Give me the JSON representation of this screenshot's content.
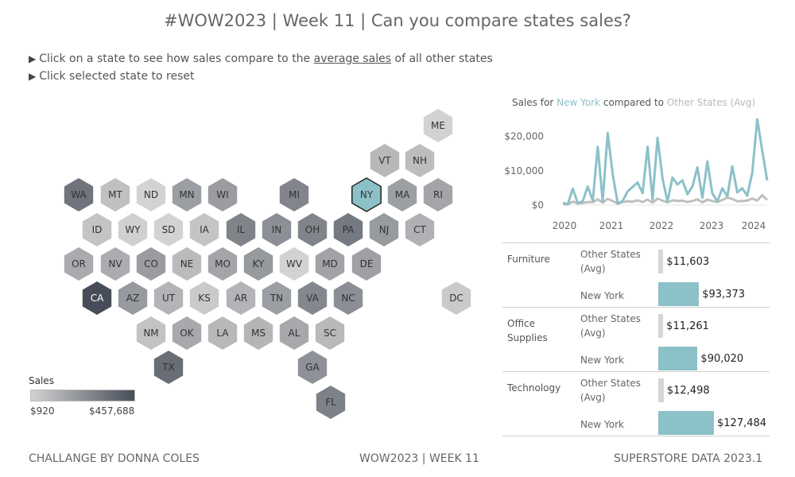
{
  "title": "#WOW2023 | Week 11 | Can you compare states sales?",
  "instructions": {
    "line1_pre": "Click on a state to see how sales compare to the",
    "line1_link": "average sales",
    "line1_post": "of all other states",
    "line2": "Click selected state to reset",
    "arrow": "▶"
  },
  "colors": {
    "selected": "#8cc1c8",
    "low": "#d3d3d3",
    "high": "#474d58",
    "other": "#bfbfbf",
    "title_state": "#8cc1c8",
    "title_other": "#b9b9b9"
  },
  "legend": {
    "title": "Sales",
    "min": "$920",
    "max": "$457,688",
    "min_value": 920,
    "max_value": 457688
  },
  "chart_data": [
    {
      "type": "heatmap",
      "title": "",
      "selected": "NY",
      "states": [
        {
          "code": "ME",
          "value": 1300
        },
        {
          "code": "VT",
          "value": 9000
        },
        {
          "code": "NH",
          "value": 7000
        },
        {
          "code": "WA",
          "value": 138000
        },
        {
          "code": "MT",
          "value": 5600
        },
        {
          "code": "ND",
          "value": 920
        },
        {
          "code": "MN",
          "value": 30000
        },
        {
          "code": "WI",
          "value": 32000
        },
        {
          "code": "MI",
          "value": 76000
        },
        {
          "code": "NY",
          "value": 310876
        },
        {
          "code": "MA",
          "value": 29000
        },
        {
          "code": "RI",
          "value": 22000
        },
        {
          "code": "ID",
          "value": 4400
        },
        {
          "code": "WY",
          "value": 1600
        },
        {
          "code": "SD",
          "value": 1300
        },
        {
          "code": "IA",
          "value": 4600
        },
        {
          "code": "IL",
          "value": 80000
        },
        {
          "code": "IN",
          "value": 53000
        },
        {
          "code": "OH",
          "value": 78000
        },
        {
          "code": "PA",
          "value": 116000
        },
        {
          "code": "NJ",
          "value": 35000
        },
        {
          "code": "CT",
          "value": 13000
        },
        {
          "code": "OR",
          "value": 17000
        },
        {
          "code": "NV",
          "value": 16000
        },
        {
          "code": "CO",
          "value": 32000
        },
        {
          "code": "NE",
          "value": 7500
        },
        {
          "code": "MO",
          "value": 22000
        },
        {
          "code": "KY",
          "value": 37000
        },
        {
          "code": "WV",
          "value": 1200
        },
        {
          "code": "MD",
          "value": 24000
        },
        {
          "code": "DE",
          "value": 27000
        },
        {
          "code": "CA",
          "value": 457688
        },
        {
          "code": "AZ",
          "value": 35000
        },
        {
          "code": "UT",
          "value": 11000
        },
        {
          "code": "KS",
          "value": 2900
        },
        {
          "code": "AR",
          "value": 11000
        },
        {
          "code": "TN",
          "value": 30000
        },
        {
          "code": "VA",
          "value": 70000
        },
        {
          "code": "NC",
          "value": 55000
        },
        {
          "code": "DC",
          "value": 2900
        },
        {
          "code": "NM",
          "value": 4800
        },
        {
          "code": "OK",
          "value": 19000
        },
        {
          "code": "LA",
          "value": 9000
        },
        {
          "code": "MS",
          "value": 10700
        },
        {
          "code": "AL",
          "value": 19500
        },
        {
          "code": "SC",
          "value": 8500
        },
        {
          "code": "TX",
          "value": 170000
        },
        {
          "code": "GA",
          "value": 49000
        },
        {
          "code": "FL",
          "value": 89000
        }
      ]
    },
    {
      "type": "line",
      "title_prefix": "Sales for",
      "title_state": "New York",
      "title_mid": "compared to",
      "title_other": "Other States (Avg)",
      "x_ticks": [
        "2020",
        "2021",
        "2022",
        "2023",
        "2024"
      ],
      "y_ticks": [
        "$0",
        "$10,000",
        "$20,000"
      ],
      "ylim": [
        0,
        25000
      ],
      "x_start": 2020,
      "series": [
        {
          "name": "New York",
          "values": [
            600,
            300,
            4800,
            500,
            1200,
            5400,
            1300,
            17000,
            1100,
            21000,
            9000,
            500,
            1200,
            4000,
            5300,
            6600,
            3500,
            17000,
            1600,
            19600,
            7700,
            1000,
            8000,
            6000,
            7200,
            3200,
            5400,
            11000,
            2100,
            12700,
            3400,
            1100,
            4900,
            2500,
            11300,
            3700,
            4900,
            2700,
            9400,
            25000,
            16000,
            7200
          ]
        },
        {
          "name": "Other States (Avg)",
          "values": [
            300,
            200,
            1000,
            500,
            600,
            900,
            800,
            1700,
            700,
            1800,
            1200,
            400,
            900,
            1100,
            1000,
            1400,
            900,
            1600,
            700,
            1900,
            1300,
            800,
            1400,
            1200,
            1300,
            900,
            1200,
            1700,
            800,
            1600,
            1200,
            900,
            1500,
            2200,
            1800,
            1100,
            1200,
            1300,
            1900,
            1300,
            2900,
            1500
          ]
        }
      ]
    },
    {
      "type": "bar",
      "max": 127484,
      "categories": [
        {
          "name": "Furniture",
          "rows": [
            {
              "label": "Other States (Avg)",
              "value": 11603,
              "display": "$11,603",
              "kind": "other"
            },
            {
              "label": "New York",
              "value": 93373,
              "display": "$93,373",
              "kind": "state"
            }
          ]
        },
        {
          "name": "Office Supplies",
          "rows": [
            {
              "label": "Other States (Avg)",
              "value": 11261,
              "display": "$11,261",
              "kind": "other"
            },
            {
              "label": "New York",
              "value": 90020,
              "display": "$90,020",
              "kind": "state"
            }
          ]
        },
        {
          "name": "Technology",
          "rows": [
            {
              "label": "Other States (Avg)",
              "value": 12498,
              "display": "$12,498",
              "kind": "other"
            },
            {
              "label": "New York",
              "value": 127484,
              "display": "$127,484",
              "kind": "state"
            }
          ]
        }
      ]
    }
  ],
  "footer": {
    "left": "CHALLANGE BY DONNA COLES",
    "center": "WOW2023 | WEEK 11",
    "right": "SUPERSTORE DATA 2023.1"
  }
}
